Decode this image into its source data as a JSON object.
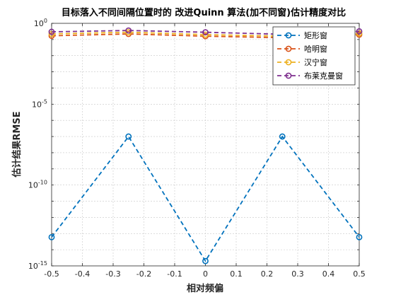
{
  "chart_data": {
    "type": "line",
    "title": "目标落入不同间隔位置时的 改进Quinn 算法(加不同窗)估计精度对比",
    "xlabel": "相对频偏",
    "ylabel": "估计结果RMSE",
    "x": [
      -0.5,
      -0.25,
      0,
      0.25,
      0.5
    ],
    "xlim": [
      -0.5,
      0.5
    ],
    "xticks": [
      "-0.5",
      "-0.4",
      "-0.3",
      "-0.2",
      "-0.1",
      "0",
      "0.1",
      "0.2",
      "0.3",
      "0.4",
      "0.5"
    ],
    "yscale": "log",
    "ylim": [
      1e-15,
      1
    ],
    "yticks": [
      {
        "base": "10",
        "exp": "0"
      },
      {
        "base": "10",
        "exp": "-5"
      },
      {
        "base": "10",
        "exp": "-10"
      },
      {
        "base": "10",
        "exp": "-15"
      }
    ],
    "grid": true,
    "legend_position": "top-right",
    "series": [
      {
        "name": "矩形窗",
        "color": "#0072BD",
        "values": [
          6e-14,
          1e-07,
          2e-15,
          1e-07,
          6e-14
        ]
      },
      {
        "name": "哈明窗",
        "color": "#D95319",
        "values": [
          0.17,
          0.22,
          0.16,
          0.13,
          0.2
        ]
      },
      {
        "name": "汉宁窗",
        "color": "#EDB120",
        "values": [
          0.22,
          0.28,
          0.2,
          0.16,
          0.24
        ]
      },
      {
        "name": "布莱克曼窗",
        "color": "#7E2F8E",
        "values": [
          0.3,
          0.36,
          0.28,
          0.21,
          0.32
        ]
      }
    ]
  }
}
